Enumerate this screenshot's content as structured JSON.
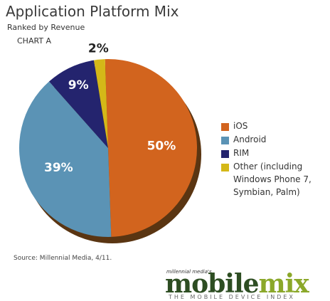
{
  "chart_data": {
    "type": "pie",
    "title": "Application Platform Mix",
    "subtitle": "Ranked by Revenue",
    "note": "CHART A",
    "categories": [
      "iOS",
      "Android",
      "RIM",
      "Other (including Windows Phone 7, Symbian, Palm)"
    ],
    "values": [
      50,
      39,
      9,
      2
    ],
    "value_labels": [
      "50%",
      "39%",
      "9%",
      "2%"
    ],
    "colors": [
      "#d2641e",
      "#5b93b5",
      "#24246e",
      "#d4b818"
    ],
    "source": "Source: Millennial Media, 4/11.",
    "logo": {
      "small": "millennial media's",
      "main_1": "mobile",
      "main_2": "mix",
      "tagline": "THE MOBILE DEVICE INDEX"
    }
  }
}
